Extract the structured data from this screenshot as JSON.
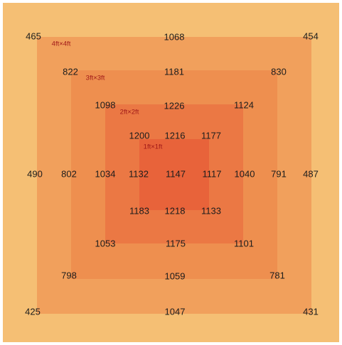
{
  "colors": {
    "level_0": "#f5bf74",
    "level_1": "#f1a05c",
    "level_2": "#ee8f4f",
    "level_3": "#eb7844",
    "level_4": "#e8633a",
    "value_text": "#1c1c1c",
    "size_label": "#a01818"
  },
  "size_labels": {
    "ft4": "4ft×4ft",
    "ft3": "3ft×3ft",
    "ft2": "2ft×2ft",
    "ft1": "1ft×1ft"
  },
  "values": {
    "r1": {
      "left": "465",
      "center": "1068",
      "right": "454"
    },
    "r2": {
      "left": "822",
      "center": "1181",
      "right": "830"
    },
    "r3": {
      "left": "1098",
      "center": "1226",
      "right": "1124"
    },
    "r4": {
      "left": "1200",
      "center": "1216",
      "right": "1177"
    },
    "r5": {
      "c1": "490",
      "c2": "802",
      "c3": "1034",
      "c4": "1132",
      "c5": "1147",
      "c6": "1117",
      "c7": "1040",
      "c8": "791",
      "c9": "487"
    },
    "r6": {
      "left": "1183",
      "center": "1218",
      "right": "1133"
    },
    "r7": {
      "left": "1053",
      "center": "1175",
      "right": "1101"
    },
    "r8": {
      "left": "798",
      "center": "1059",
      "right": "781"
    },
    "r9": {
      "left": "425",
      "center": "1047",
      "right": "431"
    }
  }
}
